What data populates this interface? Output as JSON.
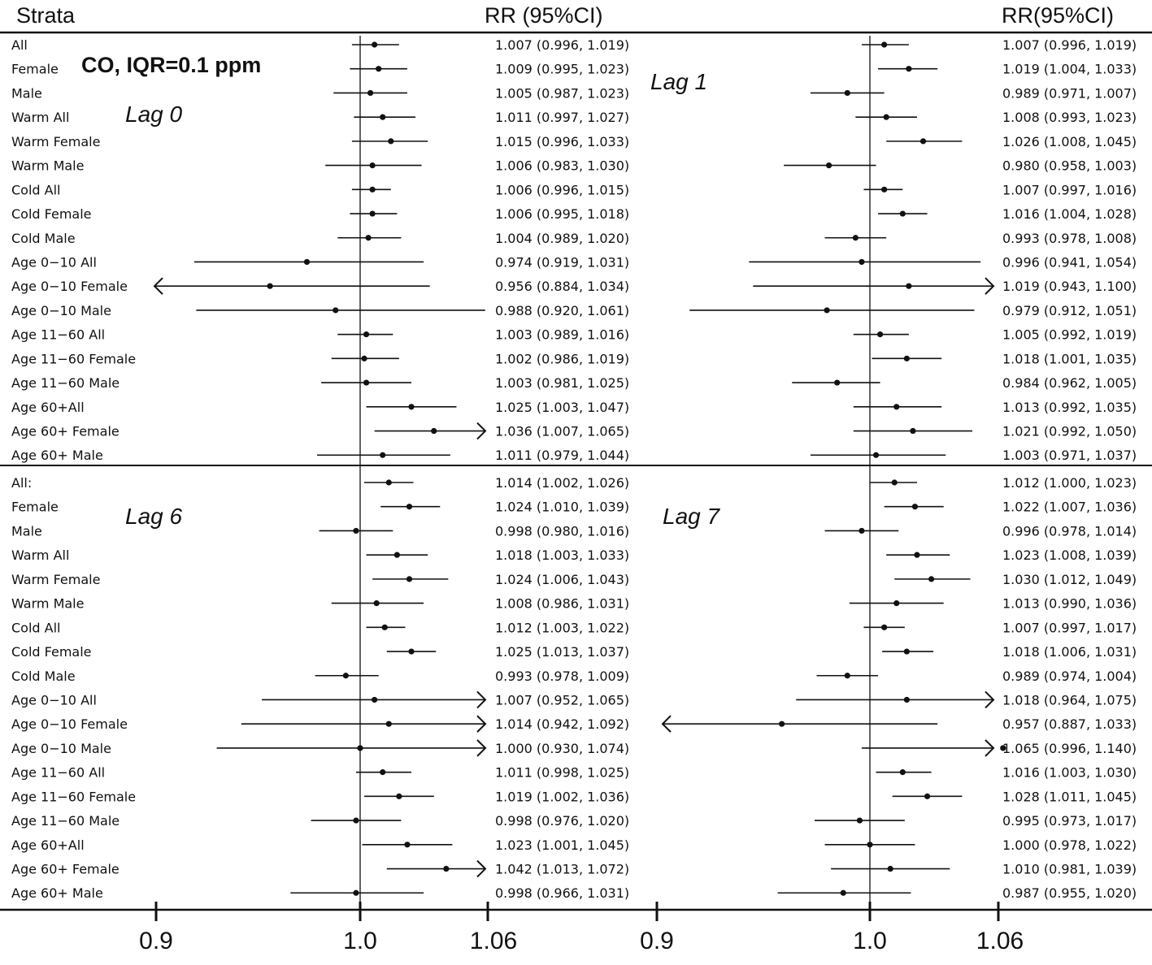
{
  "header": {
    "strata_label": "Strata",
    "rr_label_left": "RR (95%CI)",
    "rr_label_right": "RR(95%CI)"
  },
  "title": "CO, IQR=0.1 ppm",
  "colors": {
    "ink": "#111111",
    "background": "#ffffff"
  },
  "chart_data": [
    {
      "type": "forest",
      "lag_label": "Lag 0",
      "xlim": [
        0.9,
        1.06
      ],
      "reference": 1.0,
      "strata": [
        "All",
        "Female",
        "Male",
        "Warm All",
        "Warm Female",
        "Warm Male",
        "Cold All",
        "Cold Female",
        "Cold Male",
        "Age 0−10 All",
        "Age 0−10 Female",
        "Age 0−10 Male",
        "Age 11−60 All",
        "Age 11−60 Female",
        "Age 11−60 Male",
        "Age 60+All",
        "Age 60+ Female",
        "Age 60+ Male"
      ],
      "rr": [
        1.007,
        1.009,
        1.005,
        1.011,
        1.015,
        1.006,
        1.006,
        1.006,
        1.004,
        0.974,
        0.956,
        0.988,
        1.003,
        1.002,
        1.003,
        1.025,
        1.036,
        1.011
      ],
      "lower": [
        0.996,
        0.995,
        0.987,
        0.997,
        0.996,
        0.983,
        0.996,
        0.995,
        0.989,
        0.919,
        0.884,
        0.92,
        0.989,
        0.986,
        0.981,
        1.003,
        1.007,
        0.979
      ],
      "upper": [
        1.019,
        1.023,
        1.023,
        1.027,
        1.033,
        1.03,
        1.015,
        1.018,
        1.02,
        1.031,
        1.034,
        1.061,
        1.016,
        1.019,
        1.025,
        1.047,
        1.065,
        1.044
      ],
      "labels": [
        "1.007 (0.996, 1.019)",
        "1.009 (0.995, 1.023)",
        "1.005 (0.987, 1.023)",
        "1.011 (0.997, 1.027)",
        "1.015 (0.996, 1.033)",
        "1.006 (0.983, 1.030)",
        "1.006 (0.996, 1.015)",
        "1.006 (0.995, 1.018)",
        "1.004 (0.989, 1.020)",
        "0.974 (0.919, 1.031)",
        "0.956 (0.884, 1.034)",
        "0.988 (0.920, 1.061)",
        "1.003 (0.989, 1.016)",
        "1.002 (0.986, 1.019)",
        "1.003 (0.981, 1.025)",
        "1.025 (1.003, 1.047)",
        "1.036 (1.007, 1.065)",
        "1.011 (0.979, 1.044)"
      ]
    },
    {
      "type": "forest",
      "lag_label": "Lag 1",
      "xlim": [
        0.9,
        1.06
      ],
      "reference": 1.0,
      "strata": [
        "All",
        "Female",
        "Male",
        "Warm All",
        "Warm Female",
        "Warm Male",
        "Cold All",
        "Cold Female",
        "Cold Male",
        "Age 0−10 All",
        "Age 0−10 Female",
        "Age 0−10 Male",
        "Age 11−60 All",
        "Age 11−60 Female",
        "Age 11−60 Male",
        "Age 60+All",
        "Age 60+ Female",
        "Age 60+ Male"
      ],
      "rr": [
        1.007,
        1.019,
        0.989,
        1.008,
        1.026,
        0.98,
        1.007,
        1.016,
        0.993,
        0.996,
        1.019,
        0.979,
        1.005,
        1.018,
        0.984,
        1.013,
        1.021,
        1.003
      ],
      "lower": [
        0.996,
        1.004,
        0.971,
        0.993,
        1.008,
        0.958,
        0.997,
        1.004,
        0.978,
        0.941,
        0.943,
        0.912,
        0.992,
        1.001,
        0.962,
        0.992,
        0.992,
        0.971
      ],
      "upper": [
        1.019,
        1.033,
        1.007,
        1.023,
        1.045,
        1.003,
        1.016,
        1.028,
        1.008,
        1.054,
        1.1,
        1.051,
        1.019,
        1.035,
        1.005,
        1.035,
        1.05,
        1.037
      ],
      "labels": [
        "1.007 (0.996, 1.019)",
        "1.019 (1.004, 1.033)",
        "0.989 (0.971, 1.007)",
        "1.008 (0.993, 1.023)",
        "1.026 (1.008, 1.045)",
        "0.980 (0.958, 1.003)",
        "1.007 (0.997, 1.016)",
        "1.016 (1.004, 1.028)",
        "0.993 (0.978, 1.008)",
        "0.996 (0.941, 1.054)",
        "1.019 (0.943, 1.100)",
        "0.979 (0.912, 1.051)",
        "1.005 (0.992, 1.019)",
        "1.018 (1.001, 1.035)",
        "0.984 (0.962, 1.005)",
        "1.013 (0.992, 1.035)",
        "1.021 (0.992, 1.050)",
        "1.003 (0.971, 1.037)"
      ]
    },
    {
      "type": "forest",
      "lag_label": "Lag 6",
      "xlim": [
        0.9,
        1.06
      ],
      "reference": 1.0,
      "strata": [
        "All:",
        "Female",
        "Male",
        "Warm All",
        "Warm Female",
        "Warm Male",
        "Cold All",
        "Cold Female",
        "Cold Male",
        "Age 0−10 All",
        "Age 0−10 Female",
        "Age 0−10 Male",
        "Age 11−60 All",
        "Age 11−60 Female",
        "Age 11−60 Male",
        "Age 60+All",
        "Age 60+ Female",
        "Age 60+ Male"
      ],
      "rr": [
        1.014,
        1.024,
        0.998,
        1.018,
        1.024,
        1.008,
        1.012,
        1.025,
        0.993,
        1.007,
        1.014,
        1.0,
        1.011,
        1.019,
        0.998,
        1.023,
        1.042,
        0.998
      ],
      "lower": [
        1.002,
        1.01,
        0.98,
        1.003,
        1.006,
        0.986,
        1.003,
        1.013,
        0.978,
        0.952,
        0.942,
        0.93,
        0.998,
        1.002,
        0.976,
        1.001,
        1.013,
        0.966
      ],
      "upper": [
        1.026,
        1.039,
        1.016,
        1.033,
        1.043,
        1.031,
        1.022,
        1.037,
        1.009,
        1.065,
        1.092,
        1.074,
        1.025,
        1.036,
        1.02,
        1.045,
        1.072,
        1.031
      ],
      "labels": [
        "1.014 (1.002, 1.026)",
        "1.024 (1.010, 1.039)",
        "0.998 (0.980, 1.016)",
        "1.018 (1.003, 1.033)",
        "1.024 (1.006, 1.043)",
        "1.008 (0.986, 1.031)",
        "1.012 (1.003, 1.022)",
        "1.025 (1.013, 1.037)",
        "0.993 (0.978, 1.009)",
        "1.007 (0.952, 1.065)",
        "1.014 (0.942, 1.092)",
        "1.000 (0.930, 1.074)",
        "1.011 (0.998, 1.025)",
        "1.019 (1.002, 1.036)",
        "0.998 (0.976, 1.020)",
        "1.023 (1.001, 1.045)",
        "1.042 (1.013, 1.072)",
        "0.998 (0.966, 1.031)"
      ]
    },
    {
      "type": "forest",
      "lag_label": "Lag 7",
      "xlim": [
        0.9,
        1.06
      ],
      "reference": 1.0,
      "strata": [
        "All",
        "Female",
        "Male",
        "Warm All",
        "Warm Female",
        "Warm Male",
        "Cold All",
        "Cold Female",
        "Cold Male",
        "Age 0−10 All",
        "Age 0−10 Female",
        "Age 0−10 Male",
        "Age 11−60 All",
        "Age 11−60 Female",
        "Age 11−60 Male",
        "Age 60+All",
        "Age 60+ Female",
        "Age 60+ Male"
      ],
      "rr": [
        1.012,
        1.022,
        0.996,
        1.023,
        1.03,
        1.013,
        1.007,
        1.018,
        0.989,
        1.018,
        0.957,
        1.065,
        1.016,
        1.028,
        0.995,
        1.0,
        1.01,
        0.987
      ],
      "lower": [
        1.0,
        1.007,
        0.978,
        1.008,
        1.012,
        0.99,
        0.997,
        1.006,
        0.974,
        0.964,
        0.887,
        0.996,
        1.003,
        1.011,
        0.973,
        0.978,
        0.981,
        0.955
      ],
      "upper": [
        1.023,
        1.036,
        1.014,
        1.039,
        1.049,
        1.036,
        1.017,
        1.031,
        1.004,
        1.075,
        1.033,
        1.14,
        1.03,
        1.045,
        1.017,
        1.022,
        1.039,
        1.02
      ],
      "labels": [
        "1.012 (1.000, 1.023)",
        "1.022 (1.007, 1.036)",
        "0.996 (0.978, 1.014)",
        "1.023 (1.008, 1.039)",
        "1.030 (1.012, 1.049)",
        "1.013 (0.990, 1.036)",
        "1.007 (0.997, 1.017)",
        "1.018 (1.006, 1.031)",
        "0.989 (0.974, 1.004)",
        "1.018 (0.964, 1.075)",
        "0.957 (0.887, 1.033)",
        "1.065 (0.996, 1.140)",
        "1.016 (1.003, 1.030)",
        "1.028 (1.011, 1.045)",
        "0.995 (0.973, 1.017)",
        "1.000 (0.978, 1.022)",
        "1.010 (0.981, 1.039)",
        "0.987 (0.955, 1.020)"
      ]
    }
  ],
  "axis": {
    "ticks_left": [
      "0.9",
      "1.0",
      "1.06"
    ],
    "ticks_right": [
      "0.9",
      "1.0",
      "1.06"
    ]
  }
}
